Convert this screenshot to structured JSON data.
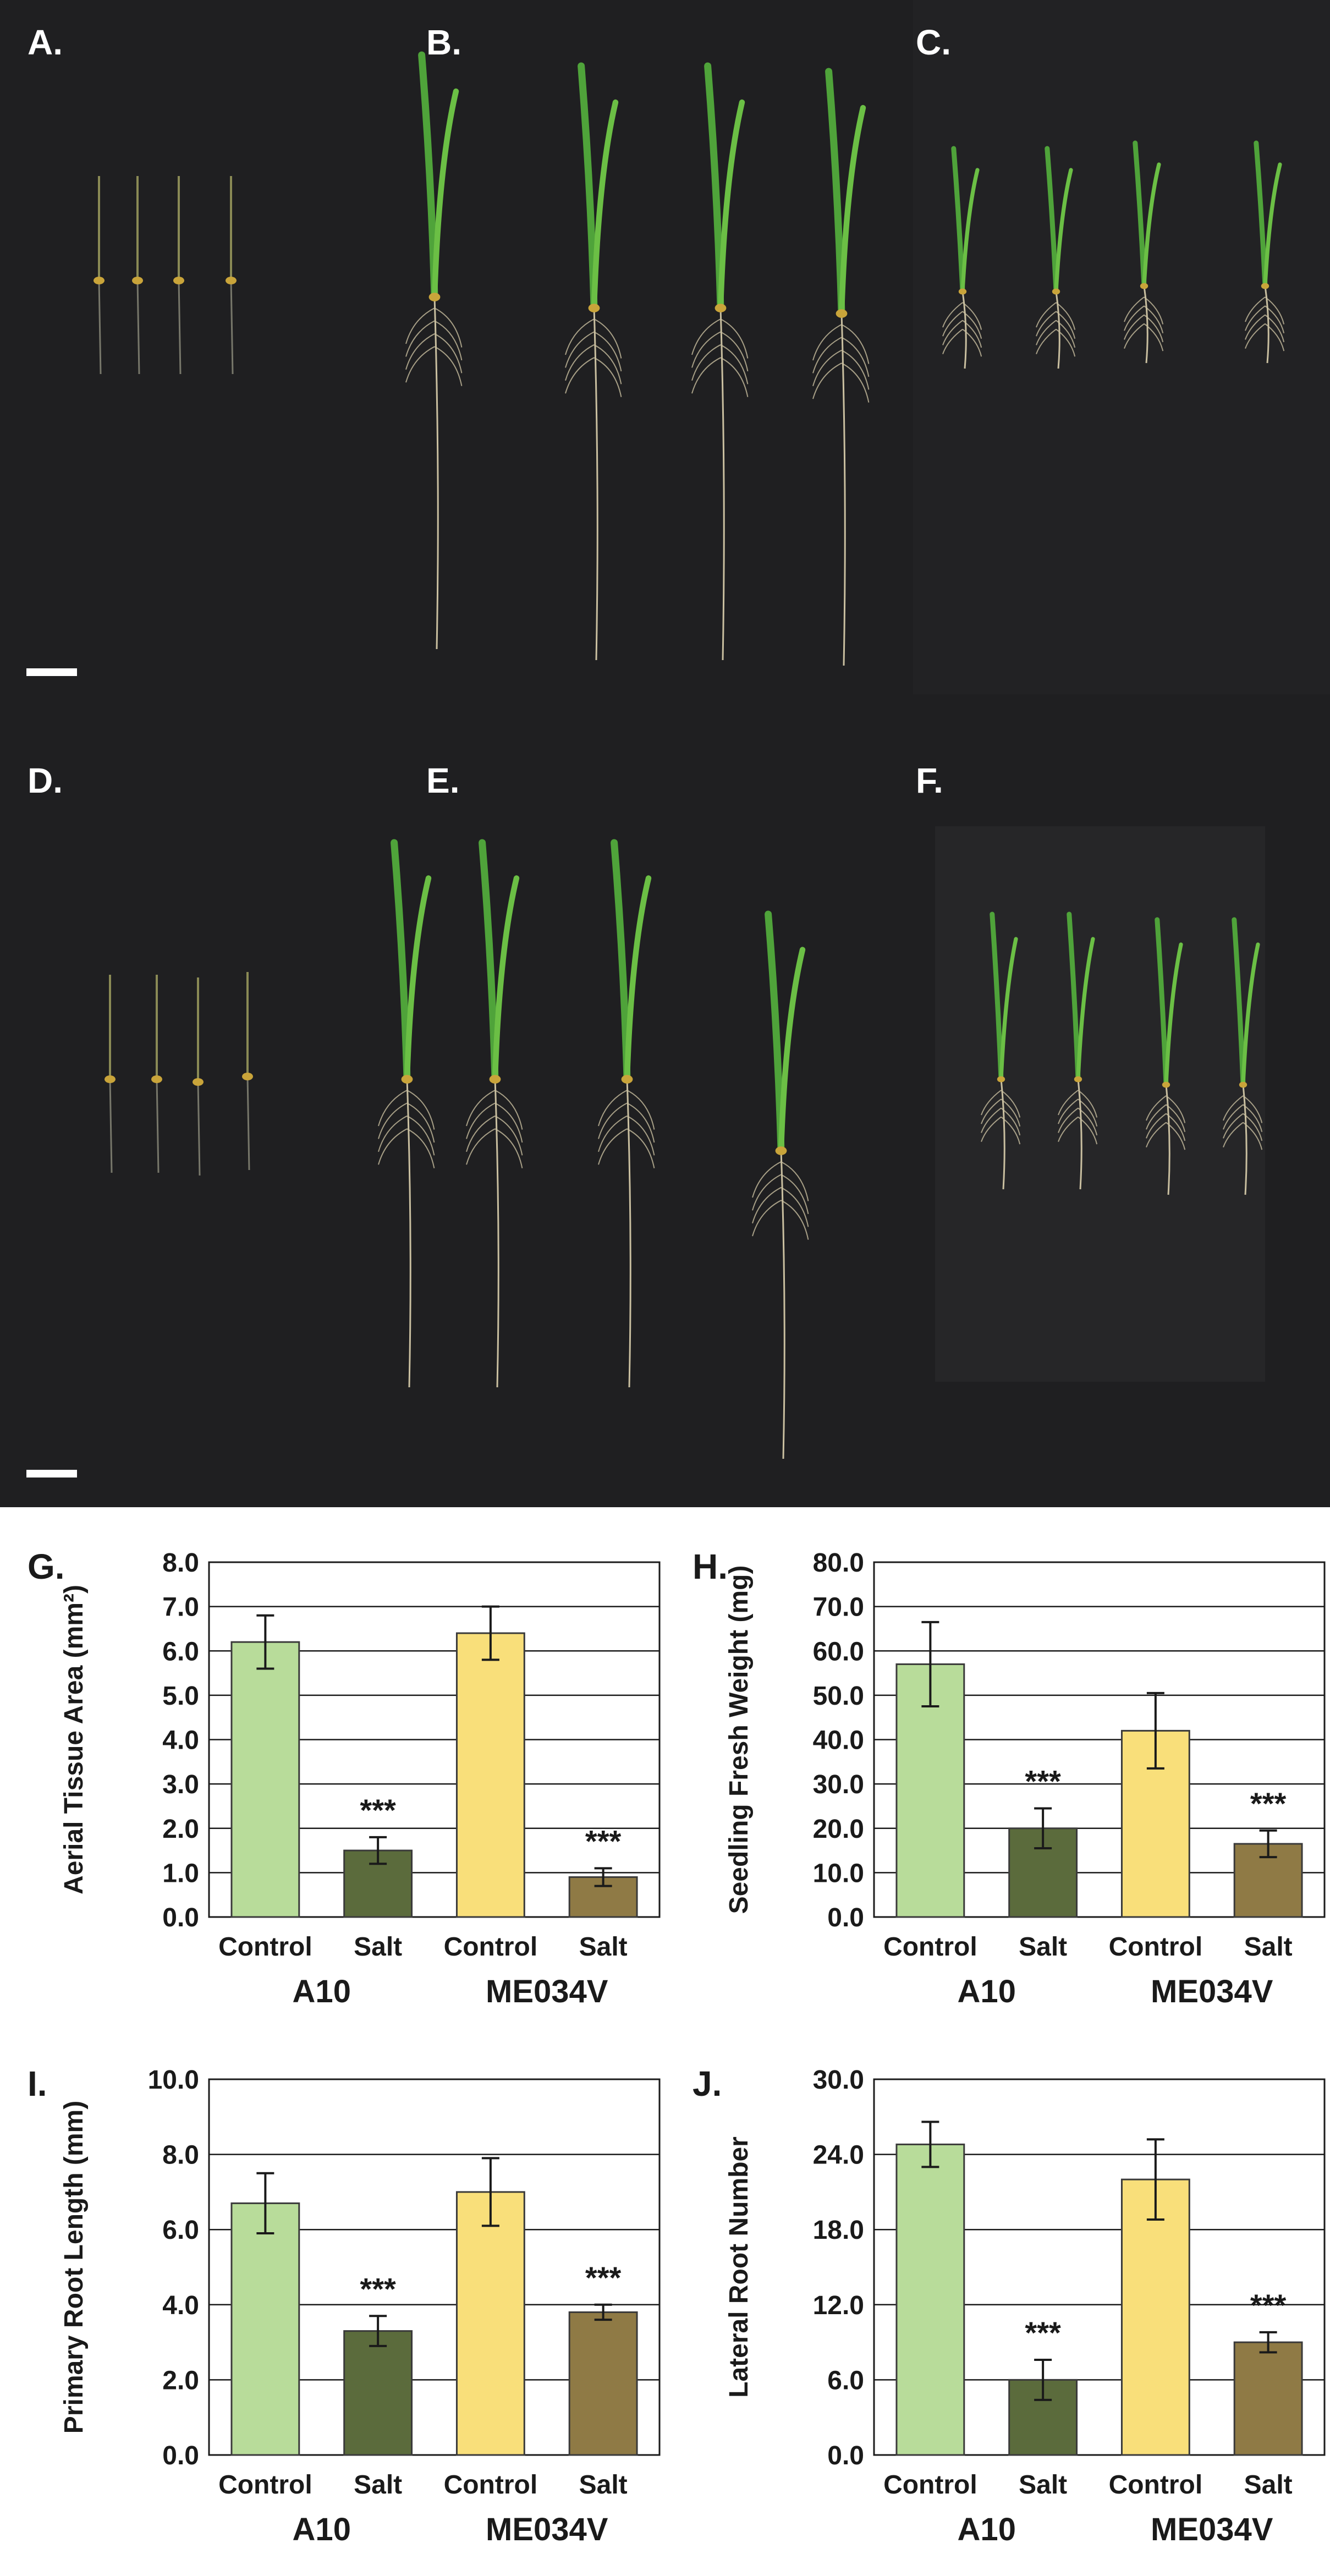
{
  "photo_panels": {
    "top": [
      {
        "label": "A."
      },
      {
        "label": "B."
      },
      {
        "label": "C."
      }
    ],
    "bottom": [
      {
        "label": "D."
      },
      {
        "label": "E."
      },
      {
        "label": "F."
      }
    ]
  },
  "colors": {
    "a10_control": "#b8dc9a",
    "a10_salt": "#5b6b3c",
    "me_control": "#f9df7a",
    "me_salt": "#8f7a45",
    "photo_bg": "#1f1f21",
    "shoot": "#4fa33a",
    "root": "#c9bfa0"
  },
  "chart_data": [
    {
      "panel": "G.",
      "type": "bar",
      "ylabel": "Aerial Tissue Area (mm²)",
      "ylim": [
        0,
        8
      ],
      "yticks": [
        "0.0",
        "1.0",
        "2.0",
        "3.0",
        "4.0",
        "5.0",
        "6.0",
        "7.0",
        "8.0"
      ],
      "categories": [
        "Control",
        "Salt",
        "Control",
        "Salt"
      ],
      "groups": [
        "A10",
        "ME034V"
      ],
      "values": [
        6.2,
        1.5,
        6.4,
        0.9
      ],
      "errors": [
        0.6,
        0.3,
        0.6,
        0.2
      ],
      "annotations": [
        "",
        "***",
        "",
        "***"
      ]
    },
    {
      "panel": "H.",
      "type": "bar",
      "ylabel": "Seedling Fresh Weight (mg)",
      "ylim": [
        0,
        80
      ],
      "yticks": [
        "0.0",
        "10.0",
        "20.0",
        "30.0",
        "40.0",
        "50.0",
        "60.0",
        "70.0",
        "80.0"
      ],
      "categories": [
        "Control",
        "Salt",
        "Control",
        "Salt"
      ],
      "groups": [
        "A10",
        "ME034V"
      ],
      "values": [
        57,
        20,
        42,
        16.5
      ],
      "errors": [
        9.5,
        4.5,
        8.5,
        3
      ],
      "annotations": [
        "",
        "***",
        "",
        "***"
      ]
    },
    {
      "panel": "I.",
      "type": "bar",
      "ylabel": "Primary Root Length (mm)",
      "ylim": [
        0,
        10
      ],
      "yticks": [
        "0.0",
        "2.0",
        "4.0",
        "6.0",
        "8.0",
        "10.0"
      ],
      "categories": [
        "Control",
        "Salt",
        "Control",
        "Salt"
      ],
      "groups": [
        "A10",
        "ME034V"
      ],
      "values": [
        6.7,
        3.3,
        7.0,
        3.8
      ],
      "errors": [
        0.8,
        0.4,
        0.9,
        0.2
      ],
      "annotations": [
        "",
        "***",
        "",
        "***"
      ]
    },
    {
      "panel": "J.",
      "type": "bar",
      "ylabel": "Lateral Root Number",
      "ylim": [
        0,
        30
      ],
      "yticks": [
        "0.0",
        "6.0",
        "12.0",
        "18.0",
        "24.0",
        "30.0"
      ],
      "categories": [
        "Control",
        "Salt",
        "Control",
        "Salt"
      ],
      "groups": [
        "A10",
        "ME034V"
      ],
      "values": [
        24.8,
        6.0,
        22.0,
        9.0
      ],
      "errors": [
        1.8,
        1.6,
        3.2,
        0.8
      ],
      "annotations": [
        "",
        "***",
        "",
        "***"
      ]
    }
  ]
}
